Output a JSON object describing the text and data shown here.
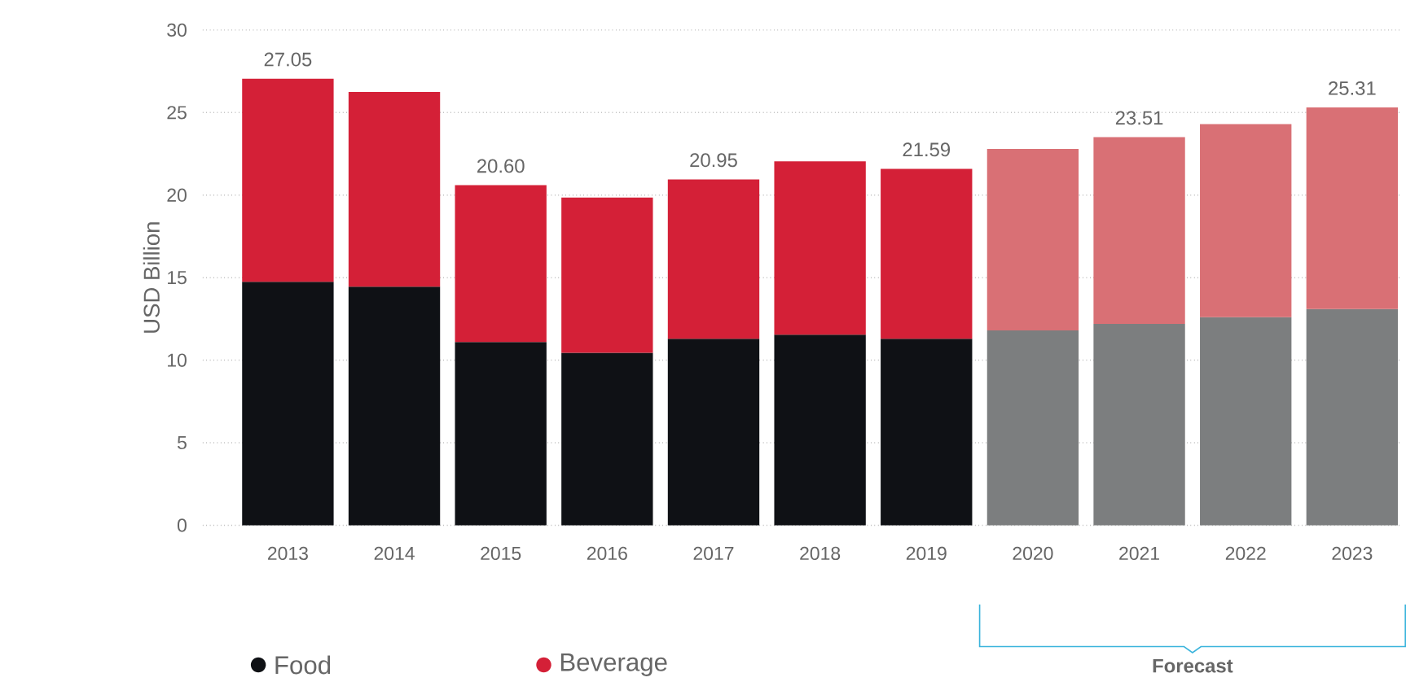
{
  "chart_data": {
    "type": "bar",
    "stacked": true,
    "ylabel": "USD Billion",
    "categories": [
      "2013",
      "2014",
      "2015",
      "2016",
      "2017",
      "2018",
      "2019",
      "2020",
      "2021",
      "2022",
      "2023"
    ],
    "series": [
      {
        "name": "Food",
        "color": "#0f1115",
        "colors": [
          "#0f1115",
          "#0f1115",
          "#0f1115",
          "#0f1115",
          "#0f1115",
          "#0f1115",
          "#0f1115",
          "#7c7e7f",
          "#7c7e7f",
          "#7c7e7f",
          "#7c7e7f"
        ],
        "values": [
          14.75,
          14.45,
          11.1,
          10.45,
          11.3,
          11.55,
          11.3,
          11.8,
          12.2,
          12.6,
          13.1
        ]
      },
      {
        "name": "Beverage",
        "color": "#d42037",
        "colors": [
          "#d42037",
          "#d42037",
          "#d42037",
          "#d42037",
          "#d42037",
          "#d42037",
          "#d42037",
          "#d97075",
          "#d97075",
          "#d97075",
          "#d97075"
        ],
        "values": [
          12.3,
          11.8,
          9.5,
          9.4,
          9.65,
          10.5,
          10.29,
          11.0,
          11.31,
          11.7,
          12.21
        ]
      }
    ],
    "totals": [
      "27.05",
      null,
      "20.60",
      null,
      "20.95",
      null,
      "21.59",
      null,
      "23.51",
      null,
      "25.31"
    ],
    "ylim": [
      0,
      30
    ],
    "yticks": [
      0,
      5,
      10,
      15,
      20,
      25,
      30
    ],
    "grid": "y",
    "legend": "bottom left",
    "annotations": [
      "Forecast"
    ]
  }
}
